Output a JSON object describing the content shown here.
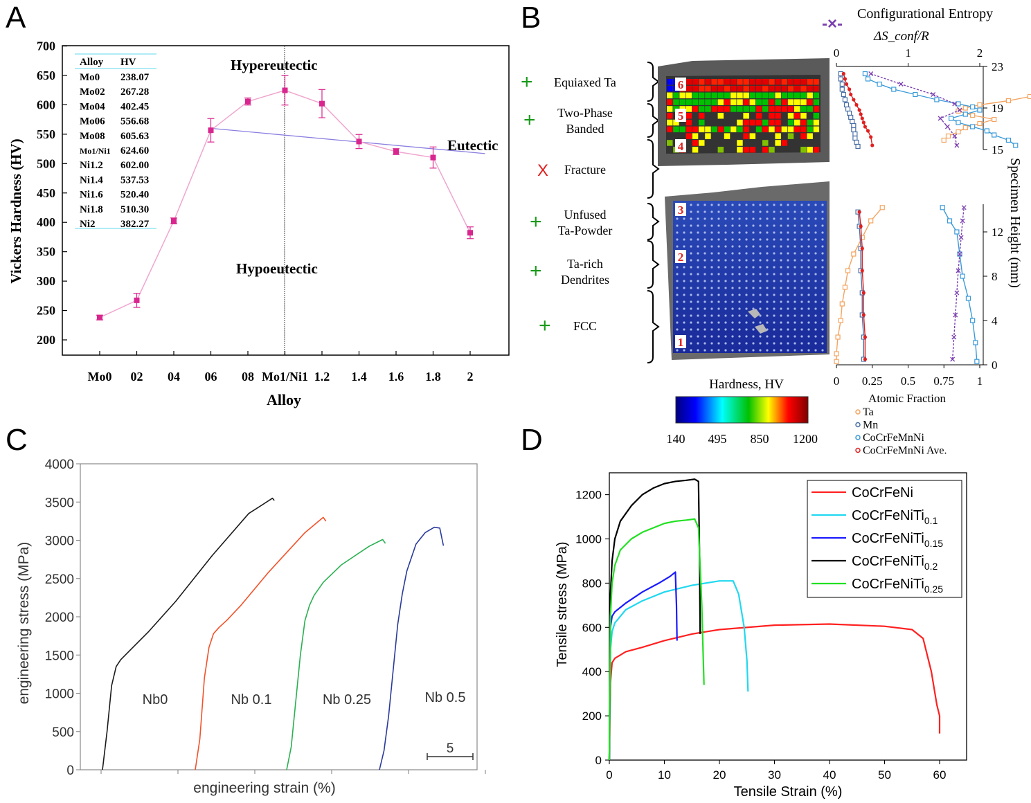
{
  "panels": {
    "a": {
      "letter": "A",
      "xlabel": "Alloy",
      "ylabel": "Vickers Hardness (HV)",
      "region_labels": {
        "upper": "Hypereutectic",
        "lower": "Hypoeutectic",
        "right": "Eutectic"
      },
      "table": {
        "headers": [
          "Alloy",
          "HV"
        ],
        "rows": [
          [
            "Mo0",
            "238.07"
          ],
          [
            "Mo02",
            "267.28"
          ],
          [
            "Mo04",
            "402.45"
          ],
          [
            "Mo06",
            "556.68"
          ],
          [
            "Mo08",
            "605.63"
          ],
          [
            "Mo1/Ni1",
            "624.60"
          ],
          [
            "Ni1.2",
            "602.00"
          ],
          [
            "Ni1.4",
            "537.53"
          ],
          [
            "Ni1.6",
            "520.40"
          ],
          [
            "Ni1.8",
            "510.30"
          ],
          [
            "Ni2",
            "382.27"
          ]
        ]
      },
      "color": "#d9268e"
    },
    "b": {
      "letter": "B",
      "entropy_legend": "Configurational Entropy",
      "entropy_symbol": "ΔS_conf/R",
      "top_axis_ticks": [
        "0",
        "1",
        "2"
      ],
      "bottom_axis_ticks": [
        "0",
        "0.25",
        "0.5",
        "0.75",
        "1"
      ],
      "bottom_axis_label": "Atomic Fraction",
      "right_axis_label": "Specimen Height (mm)",
      "right_axis_ticks_upper": [
        "23",
        "19",
        "15"
      ],
      "right_axis_ticks_lower": [
        "12",
        "8",
        "4",
        "0"
      ],
      "hardness_label": "Hardness, HV",
      "colorbar_ticks": [
        "140",
        "495",
        "850",
        "1200"
      ],
      "region_numbers": [
        "6",
        "5",
        "4",
        "3",
        "2",
        "1"
      ],
      "phases": [
        {
          "mark": "+",
          "label": [
            "Equiaxed Ta"
          ]
        },
        {
          "mark": "+",
          "label": [
            "Two-Phase",
            "Banded"
          ]
        },
        {
          "mark": "X",
          "label": [
            "Fracture"
          ]
        },
        {
          "mark": "+",
          "label": [
            "Unfused",
            "Ta-Powder"
          ]
        },
        {
          "mark": "+",
          "label": [
            "Ta-rich",
            "Dendrites"
          ]
        },
        {
          "mark": "+",
          "label": [
            "FCC"
          ]
        }
      ],
      "legend": [
        {
          "name": "Ta",
          "color": "#f4a460"
        },
        {
          "name": "Mn",
          "color": "#4a6fa5"
        },
        {
          "name": "CoCrFeMnNi",
          "color": "#3a9ad9"
        },
        {
          "name": "CoCrFeMnNi Ave.",
          "color": "#e02020"
        }
      ],
      "entropy_color": "#7b3fb0"
    },
    "c": {
      "letter": "C",
      "xlabel": "engineering strain (%)",
      "ylabel": "engineering stress (MPa)",
      "scale_bar_label": "5",
      "curve_labels": [
        "Nb0",
        "Nb 0.1",
        "Nb 0.25",
        "Nb 0.5"
      ]
    },
    "d": {
      "letter": "D",
      "xlabel": "Tensile Strain (%)",
      "ylabel": "Tensile stress (MPa)",
      "legend": [
        {
          "base": "CoCrFeNi",
          "sub": "",
          "color": "#ff2020"
        },
        {
          "base": "CoCrFeNiTi",
          "sub": "0.1",
          "color": "#20d8f0"
        },
        {
          "base": "CoCrFeNiTi",
          "sub": "0.15",
          "color": "#1a1aff"
        },
        {
          "base": "CoCrFeNiTi",
          "sub": "0.2",
          "color": "#000000"
        },
        {
          "base": "CoCrFeNiTi",
          "sub": "0.25",
          "color": "#22e022"
        }
      ]
    }
  },
  "chart_data": [
    {
      "type": "line",
      "panel": "A",
      "categories": [
        "Mo0",
        "02",
        "04",
        "06",
        "08",
        "Mo1/Ni1",
        "1.2",
        "1.4",
        "1.6",
        "1.8",
        "2"
      ],
      "series": [
        {
          "values": [
            238.07,
            267.28,
            402.45,
            556.68,
            605.63,
            624.6,
            602.0,
            537.53,
            520.4,
            510.3,
            382.27
          ],
          "errors": [
            4,
            12,
            5,
            20,
            6,
            25,
            24,
            12,
            5,
            18,
            10
          ]
        }
      ],
      "eutectic_line": {
        "start": [
          3,
          560
        ],
        "end": [
          10.4,
          517
        ]
      },
      "divider_at": "Mo1/Ni1",
      "xlabel": "Alloy",
      "ylabel": "Vickers Hardness (HV)",
      "ylim": [
        200,
        700
      ],
      "yticks": [
        200,
        250,
        300,
        350,
        400,
        450,
        500,
        550,
        600,
        650,
        700
      ],
      "grid": false
    },
    {
      "type": "line",
      "panel": "B",
      "xlabel": "Atomic Fraction",
      "ylabel": "Specimen Height (mm)",
      "xlim": [
        0,
        1
      ],
      "x2lim": [
        0,
        2
      ],
      "ylim_upper": [
        15,
        23
      ],
      "ylim_lower": [
        0,
        14.5
      ],
      "upper_series": [
        {
          "name": "Ta",
          "x": [
            1.8,
            1.75,
            1.65,
            1.55,
            1.45,
            1.35,
            1.2,
            1.0,
            0.9,
            0.85,
            0.95,
            1.1,
            1.0,
            0.9,
            0.85,
            0.78,
            0.75
          ],
          "y": [
            22,
            21.7,
            21.3,
            20.9,
            20.5,
            20.1,
            19.7,
            19.3,
            19,
            18.7,
            18.3,
            17.9,
            17.5,
            17.1,
            16.7,
            16.3,
            15.9
          ]
        },
        {
          "name": "Mn",
          "x": [
            0.03,
            0.03,
            0.04,
            0.04,
            0.05,
            0.06,
            0.07,
            0.08,
            0.09,
            0.1,
            0.11,
            0.12,
            0.12,
            0.13,
            0.13,
            0.14,
            0.15
          ],
          "y": [
            22.3,
            21.8,
            21.3,
            20.8,
            20.3,
            19.8,
            19.3,
            18.9,
            18.5,
            18.1,
            17.7,
            17.3,
            16.9,
            16.5,
            16.1,
            15.7,
            15.3
          ]
        },
        {
          "name": "CoCrFeMnNi",
          "x": [
            0.2,
            0.22,
            0.3,
            0.4,
            0.55,
            0.7,
            0.85,
            0.95,
            1.0,
            0.9,
            0.8,
            0.85,
            0.95,
            1.05,
            1.1,
            1.2,
            1.25
          ],
          "y": [
            22.3,
            21.8,
            21.3,
            20.8,
            20.3,
            19.8,
            19.4,
            19.1,
            18.8,
            18.4,
            18.0,
            17.6,
            17.2,
            16.8,
            16.4,
            15.9,
            15.4
          ]
        },
        {
          "name": "CoCrFeMnNi Ave.",
          "x": [
            0.05,
            0.06,
            0.07,
            0.09,
            0.1,
            0.12,
            0.14,
            0.16,
            0.17,
            0.18,
            0.19,
            0.2,
            0.22,
            0.24,
            0.25
          ],
          "y": [
            22.3,
            21.8,
            21.3,
            20.8,
            20.3,
            19.8,
            19.3,
            18.8,
            18.4,
            18.0,
            17.6,
            17.2,
            16.8,
            16.2,
            15.4
          ]
        },
        {
          "name": "ΔS_conf/R",
          "axis": "x2",
          "x": [
            0.48,
            0.9,
            1.35,
            1.65,
            1.72,
            1.45,
            1.55,
            1.65,
            1.68
          ],
          "y": [
            22.3,
            21.3,
            20.3,
            19.4,
            18.8,
            18.0,
            17.2,
            16.3,
            15.4
          ]
        }
      ],
      "lower_series": [
        {
          "name": "Ta",
          "x": [
            0.0,
            0.0,
            0.01,
            0.03,
            0.04,
            0.06,
            0.08,
            0.12,
            0.18,
            0.24,
            0.32
          ],
          "y": [
            0.3,
            1.0,
            2.5,
            4.0,
            5.5,
            7.0,
            8.5,
            10.0,
            11.5,
            13.0,
            14.2
          ]
        },
        {
          "name": "Mn",
          "x": [
            0.19,
            0.19,
            0.18,
            0.18,
            0.17,
            0.17,
            0.16,
            0.15
          ],
          "y": [
            0.5,
            2.5,
            4.5,
            6.5,
            8.5,
            10.5,
            12.5,
            13.8
          ]
        },
        {
          "name": "CoCrFeMnNi",
          "x": [
            0.98,
            0.97,
            0.95,
            0.92,
            0.88,
            0.86,
            0.84,
            0.79,
            0.74
          ],
          "y": [
            0.3,
            2.0,
            4.0,
            6.0,
            8.0,
            10.0,
            12.0,
            13.0,
            14.2
          ]
        },
        {
          "name": "CoCrFeMnNi Ave.",
          "x": [
            0.2,
            0.2,
            0.19,
            0.19,
            0.18,
            0.18,
            0.17,
            0.16
          ],
          "y": [
            0.5,
            2.5,
            4.5,
            6.5,
            8.5,
            10.5,
            12.5,
            13.8
          ]
        },
        {
          "name": "ΔS_conf/R",
          "axis": "x2",
          "x": [
            1.62,
            1.64,
            1.66,
            1.68,
            1.7,
            1.72,
            1.74,
            1.76,
            1.78
          ],
          "y": [
            0.5,
            2.5,
            4.5,
            6.5,
            8.5,
            10.0,
            11.5,
            13.0,
            14.2
          ]
        }
      ],
      "grid": false
    },
    {
      "type": "line",
      "panel": "C",
      "xlabel": "engineering strain (%)",
      "ylabel": "engineering stress (MPa)",
      "ylim": [
        0,
        4000
      ],
      "yticks": [
        0,
        500,
        1000,
        1500,
        2000,
        2500,
        3000,
        3500,
        4000
      ],
      "series": [
        {
          "name": "Nb0",
          "color": "#1a1a1a",
          "x": [
            0,
            0.5,
            1.0,
            1.5,
            2.0,
            3.0,
            5.0,
            8.0,
            12.0,
            16.0,
            18.6,
            18.8
          ],
          "y": [
            0,
            500,
            1100,
            1350,
            1440,
            1560,
            1800,
            2200,
            2800,
            3350,
            3550,
            3520
          ]
        },
        {
          "name": "Nb 0.1",
          "color": "#f2522a",
          "x": [
            0,
            0.5,
            1.0,
            1.5,
            2.0,
            2.6,
            3.5,
            5.0,
            8.0,
            12.0,
            14.0,
            14.3
          ],
          "y": [
            0,
            400,
            1200,
            1600,
            1780,
            1860,
            1960,
            2150,
            2580,
            3100,
            3300,
            3250
          ]
        },
        {
          "name": "Nb 0.25",
          "color": "#2ab050",
          "x": [
            0,
            0.5,
            1.0,
            1.5,
            2.0,
            2.5,
            3.0,
            4.0,
            6.0,
            9.0,
            10.5,
            10.8
          ],
          "y": [
            0,
            300,
            900,
            1500,
            1950,
            2150,
            2280,
            2450,
            2680,
            2920,
            3010,
            2960
          ]
        },
        {
          "name": "Nb 0.5",
          "color": "#2a3a9a",
          "x": [
            0,
            0.5,
            1.0,
            1.5,
            2.0,
            2.5,
            3.0,
            4.0,
            5.0,
            6.0,
            6.6,
            7.0
          ],
          "y": [
            0,
            250,
            700,
            1300,
            1900,
            2300,
            2600,
            2950,
            3100,
            3170,
            3160,
            2930
          ]
        }
      ],
      "grid": false
    },
    {
      "type": "line",
      "panel": "D",
      "xlabel": "Tensile Strain (%)",
      "ylabel": "Tensile stress (MPa)",
      "xlim": [
        0,
        65
      ],
      "ylim": [
        0,
        1300
      ],
      "xticks": [
        0,
        10,
        20,
        30,
        40,
        50,
        60
      ],
      "yticks": [
        0,
        200,
        400,
        600,
        800,
        1000,
        1200
      ],
      "series": [
        {
          "name": "CoCrFeNi",
          "color": "#ff2020",
          "x": [
            0,
            0.2,
            0.5,
            1,
            3,
            6,
            10,
            15,
            20,
            30,
            40,
            50,
            55,
            57,
            58.5,
            59.5,
            60,
            60
          ],
          "y": [
            0,
            350,
            440,
            460,
            490,
            510,
            540,
            570,
            590,
            610,
            615,
            605,
            590,
            550,
            400,
            250,
            200,
            120
          ]
        },
        {
          "name": "CoCrFeNiTi0.1",
          "color": "#20d8f0",
          "x": [
            0,
            0.2,
            0.5,
            1,
            3,
            6,
            10,
            15,
            20,
            22.5,
            23.5,
            24.5,
            25,
            25.2
          ],
          "y": [
            0,
            500,
            580,
            620,
            680,
            720,
            760,
            790,
            810,
            810,
            750,
            600,
            450,
            310
          ]
        },
        {
          "name": "CoCrFeNiTi0.15",
          "color": "#1a1aff",
          "x": [
            0,
            0.2,
            0.5,
            1,
            3,
            6,
            9,
            11,
            12,
            12.2,
            12.3
          ],
          "y": [
            0,
            600,
            650,
            670,
            710,
            760,
            800,
            830,
            850,
            700,
            540
          ]
        },
        {
          "name": "CoCrFeNiTi0.2",
          "color": "#000000",
          "x": [
            0,
            0.2,
            0.5,
            1,
            2,
            4,
            6,
            8,
            10,
            12,
            14,
            15.5,
            16.2,
            16.4,
            16.5
          ],
          "y": [
            0,
            750,
            900,
            1000,
            1080,
            1150,
            1200,
            1230,
            1250,
            1260,
            1265,
            1270,
            1260,
            900,
            570
          ]
        },
        {
          "name": "CoCrFeNiTi0.25",
          "color": "#22e022",
          "x": [
            0,
            0.2,
            0.5,
            1,
            2,
            4,
            6,
            8,
            10,
            12,
            14,
            15.5,
            16.2,
            16.8,
            17.2
          ],
          "y": [
            0,
            650,
            800,
            880,
            950,
            1000,
            1030,
            1050,
            1070,
            1080,
            1085,
            1090,
            1050,
            700,
            340
          ]
        }
      ],
      "legend_position": "top-right",
      "grid": false
    }
  ]
}
